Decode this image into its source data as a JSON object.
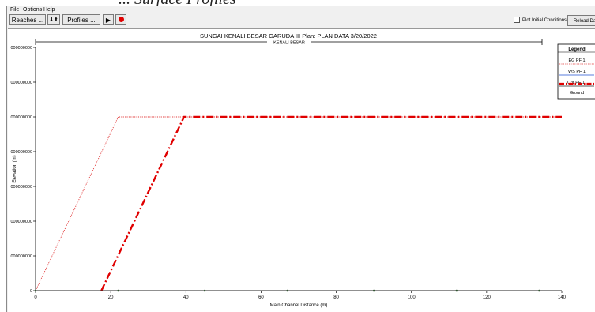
{
  "caption": "... Surface Profiles",
  "menu": [
    "File",
    "Options",
    "Help"
  ],
  "toolbar": {
    "reaches_label": "Reaches ...",
    "updown_label": "⬇⬆",
    "profiles_label": "Profiles ...",
    "play_label": "▶",
    "plot_initial_label": "Plot Initial Conditions",
    "reload_label": "Reload Da"
  },
  "plot_title": "SUNGAI KENALI BESAR GARUDA III      Plan: PLAN DATA    3/20/2022",
  "reach_label": "KENALI BESAR",
  "legend": {
    "title": "Legend",
    "items": [
      "EG  PF 1",
      "WS  PF 1",
      "Crit  PF 1",
      "Ground"
    ]
  },
  "colors": {
    "eg": "#e23b3b",
    "crit": "#e00000",
    "ground": "#222222",
    "accent_record": "#e00000"
  },
  "chart_data": {
    "type": "line",
    "xlabel": "Main Channel Distance (m)",
    "ylabel": "Elevation (m)",
    "xlim": [
      0,
      140
    ],
    "x_ticks": [
      "0",
      "20",
      "40",
      "60",
      "80",
      "100",
      "120",
      "140"
    ],
    "y_ticks": [
      "0",
      "000000000",
      "000000000",
      "000000000",
      "000000000",
      "000000000",
      "000000000",
      "000000000"
    ],
    "y_tick_values": [
      0,
      1,
      2,
      3,
      4,
      5,
      6,
      7
    ],
    "series": [
      {
        "name": "EG  PF 1",
        "x": [
          0,
          22,
          140
        ],
        "y": [
          0,
          5.0,
          5.0
        ]
      },
      {
        "name": "Crit  PF 1",
        "x": [
          17.5,
          39.5,
          140
        ],
        "y": [
          0,
          5.0,
          5.0
        ]
      },
      {
        "name": "Ground",
        "x": [
          0,
          140
        ],
        "y": [
          0,
          0
        ]
      }
    ],
    "grid": false,
    "legend_position": "top-right"
  }
}
